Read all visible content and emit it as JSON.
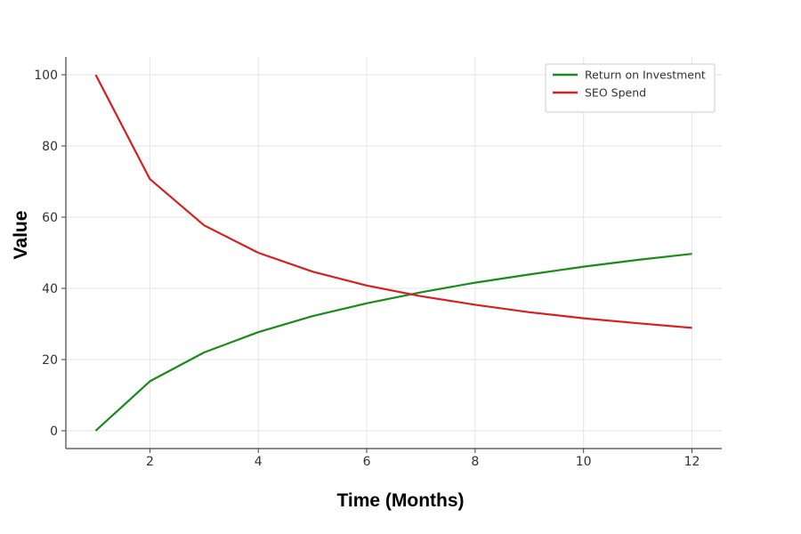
{
  "chart_data": {
    "type": "line",
    "title": "",
    "xlabel": "Time (Months)",
    "ylabel": "Value",
    "x": [
      1,
      2,
      3,
      4,
      5,
      6,
      7,
      8,
      9,
      10,
      11,
      12
    ],
    "xlim": [
      0.45,
      12.55
    ],
    "ylim": [
      -5,
      105
    ],
    "xticks": [
      2,
      4,
      6,
      8,
      10,
      12
    ],
    "yticks": [
      0,
      20,
      40,
      60,
      80,
      100
    ],
    "grid": true,
    "legend_position": "top-right",
    "series": [
      {
        "name": "Return on Investment",
        "color": "#1a8a1a",
        "values": [
          0,
          13.9,
          22.0,
          27.7,
          32.2,
          35.8,
          38.9,
          41.6,
          43.9,
          46.1,
          48.0,
          49.7
        ]
      },
      {
        "name": "SEO Spend",
        "color": "#d62020",
        "values": [
          100,
          70.7,
          57.7,
          50.0,
          44.7,
          40.8,
          37.8,
          35.4,
          33.3,
          31.6,
          30.2,
          28.9
        ]
      }
    ]
  }
}
